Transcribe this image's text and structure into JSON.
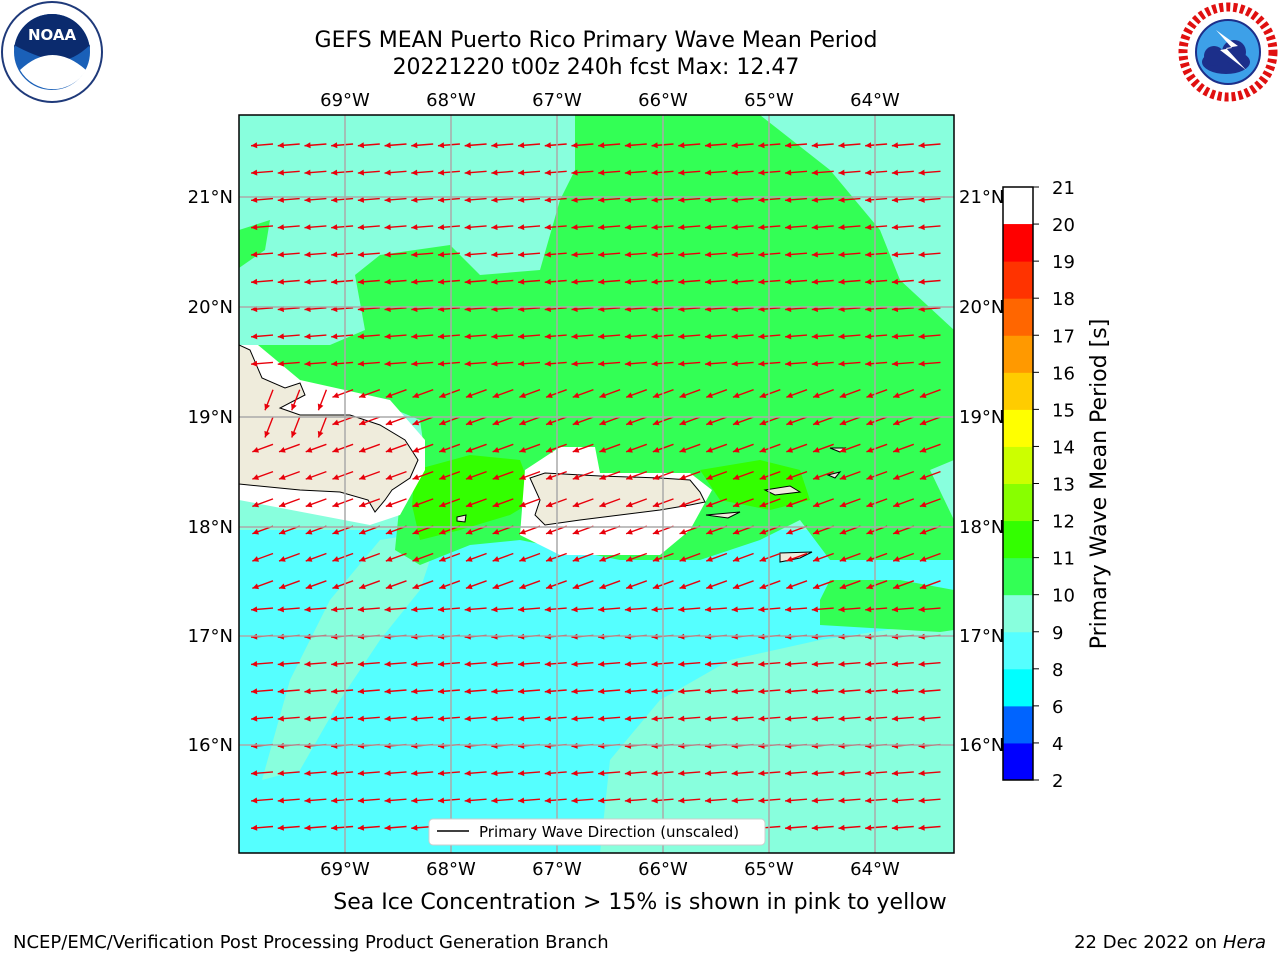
{
  "header": {
    "title_line1": "GEFS MEAN Puerto Rico Primary Wave Mean Period",
    "title_line2": "20221220 t00z 240h fcst   Max: 12.47"
  },
  "logos": {
    "noaa_text": "NOAA",
    "noaa_ring": "NATIONAL OCEANIC AND ATMOSPHERIC ADMINISTRATION  U.S. DEPARTMENT OF COMMERCE",
    "nws_ring": "NATIONAL WEATHER SERVICE"
  },
  "map": {
    "lon_labels": [
      "69°W",
      "68°W",
      "67°W",
      "66°W",
      "65°W",
      "64°W"
    ],
    "lat_labels": [
      "21°N",
      "20°N",
      "19°N",
      "18°N",
      "17°N",
      "16°N"
    ],
    "legend_label": "Primary Wave Direction (unscaled)",
    "arrow_color": "#e8000b",
    "land_color": "#efecdc"
  },
  "colorbar": {
    "label": "Primary Wave Mean Period [s]",
    "ticks": [
      "2",
      "4",
      "6",
      "8",
      "9",
      "10",
      "11",
      "12",
      "13",
      "14",
      "15",
      "16",
      "17",
      "18",
      "19",
      "20",
      "21"
    ],
    "colors": [
      "#0000ff",
      "#0064ff",
      "#00ffff",
      "#55ffff",
      "#88ffdd",
      "#33ff55",
      "#33ff00",
      "#88ff00",
      "#ccff00",
      "#ffff00",
      "#ffcc00",
      "#ff9900",
      "#ff6600",
      "#ff3300",
      "#ff0000"
    ]
  },
  "footer": {
    "note": "Sea Ice Concentration > 15% is shown in pink to yellow",
    "left": "NCEP/EMC/Verification Post Processing Product Generation Branch",
    "right_prefix": "22 Dec 2022 on",
    "right_host": "Hera"
  }
}
